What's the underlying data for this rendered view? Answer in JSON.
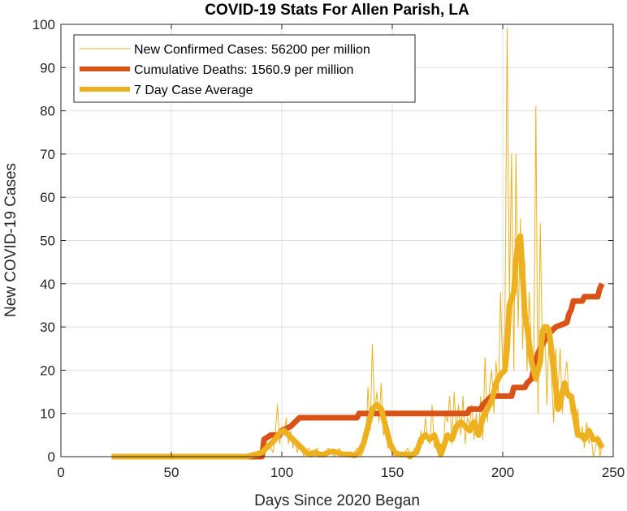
{
  "chart_data": {
    "type": "line",
    "title": "COVID-19 Stats For Allen Parish, LA",
    "xlabel": "Days Since 2020 Began",
    "ylabel": "New COVID-19 Cases",
    "xlim": [
      0,
      250
    ],
    "ylim": [
      0,
      100
    ],
    "xticks": [
      0,
      50,
      100,
      150,
      200,
      250
    ],
    "yticks": [
      0,
      10,
      20,
      30,
      40,
      50,
      60,
      70,
      80,
      90,
      100
    ],
    "grid": true,
    "legend_position": "top-left",
    "series": [
      {
        "name": "New Confirmed Cases: 56200 per million",
        "color": "#EDB120",
        "style": "thin",
        "points": [
          [
            23,
            0
          ],
          [
            85,
            0
          ],
          [
            89,
            1
          ],
          [
            92,
            0
          ],
          [
            94,
            3
          ],
          [
            96,
            1
          ],
          [
            97,
            5
          ],
          [
            98,
            12
          ],
          [
            99,
            3
          ],
          [
            100,
            7
          ],
          [
            101,
            5
          ],
          [
            102,
            9
          ],
          [
            103,
            3
          ],
          [
            104,
            6
          ],
          [
            105,
            2
          ],
          [
            106,
            4
          ],
          [
            107,
            1
          ],
          [
            108,
            3
          ],
          [
            110,
            0
          ],
          [
            112,
            2
          ],
          [
            114,
            1
          ],
          [
            116,
            2
          ],
          [
            117,
            0
          ],
          [
            118,
            1
          ],
          [
            120,
            0
          ],
          [
            121,
            2
          ],
          [
            122,
            1
          ],
          [
            124,
            0
          ],
          [
            126,
            2
          ],
          [
            128,
            0
          ],
          [
            130,
            1
          ],
          [
            132,
            0
          ],
          [
            134,
            2
          ],
          [
            136,
            0
          ],
          [
            138,
            3
          ],
          [
            139,
            16
          ],
          [
            140,
            6
          ],
          [
            141,
            26
          ],
          [
            142,
            10
          ],
          [
            143,
            15
          ],
          [
            144,
            8
          ],
          [
            145,
            17
          ],
          [
            146,
            5
          ],
          [
            147,
            7
          ],
          [
            148,
            2
          ],
          [
            149,
            3
          ],
          [
            151,
            0
          ],
          [
            153,
            1
          ],
          [
            155,
            0
          ],
          [
            157,
            2
          ],
          [
            159,
            0
          ],
          [
            160,
            2
          ],
          [
            162,
            1
          ],
          [
            163,
            6
          ],
          [
            164,
            3
          ],
          [
            165,
            9
          ],
          [
            166,
            4
          ],
          [
            167,
            3
          ],
          [
            168,
            12
          ],
          [
            169,
            2
          ],
          [
            170,
            5
          ],
          [
            171,
            0
          ],
          [
            172,
            3
          ],
          [
            173,
            1
          ],
          [
            174,
            10
          ],
          [
            175,
            8
          ],
          [
            176,
            14
          ],
          [
            177,
            3
          ],
          [
            178,
            15
          ],
          [
            179,
            6
          ],
          [
            180,
            12
          ],
          [
            181,
            5
          ],
          [
            182,
            14
          ],
          [
            183,
            3
          ],
          [
            184,
            9
          ],
          [
            185,
            7
          ],
          [
            186,
            12
          ],
          [
            187,
            4
          ],
          [
            188,
            10
          ],
          [
            189,
            5
          ],
          [
            190,
            14
          ],
          [
            191,
            4
          ],
          [
            192,
            23
          ],
          [
            193,
            8
          ],
          [
            194,
            16
          ],
          [
            195,
            20
          ],
          [
            196,
            10
          ],
          [
            197,
            22
          ],
          [
            198,
            14
          ],
          [
            199,
            38
          ],
          [
            200,
            20
          ],
          [
            201,
            30
          ],
          [
            202,
            99
          ],
          [
            203,
            36
          ],
          [
            204,
            70
          ],
          [
            205,
            20
          ],
          [
            206,
            70
          ],
          [
            207,
            30
          ],
          [
            208,
            55
          ],
          [
            209,
            25
          ],
          [
            210,
            45
          ],
          [
            211,
            20
          ],
          [
            212,
            38
          ],
          [
            213,
            25
          ],
          [
            214,
            18
          ],
          [
            215,
            81
          ],
          [
            216,
            10
          ],
          [
            217,
            54
          ],
          [
            218,
            22
          ],
          [
            219,
            30
          ],
          [
            220,
            12
          ],
          [
            221,
            30
          ],
          [
            222,
            20
          ],
          [
            223,
            8
          ],
          [
            224,
            25
          ],
          [
            225,
            15
          ],
          [
            226,
            25
          ],
          [
            227,
            10
          ],
          [
            228,
            18
          ],
          [
            229,
            22
          ],
          [
            230,
            14
          ],
          [
            231,
            10
          ],
          [
            232,
            13
          ],
          [
            233,
            5
          ],
          [
            234,
            11
          ],
          [
            235,
            4
          ],
          [
            236,
            7
          ],
          [
            237,
            2
          ],
          [
            238,
            8
          ],
          [
            239,
            3
          ],
          [
            240,
            5
          ],
          [
            241,
            0
          ],
          [
            242,
            2
          ],
          [
            243,
            5
          ],
          [
            244,
            0
          ],
          [
            245,
            3
          ]
        ]
      },
      {
        "name": "Cumulative Deaths: 1560.9 per million",
        "color": "#D95319",
        "style": "thick",
        "points": [
          [
            23,
            0
          ],
          [
            91,
            0
          ],
          [
            92,
            4
          ],
          [
            95,
            5
          ],
          [
            99,
            5
          ],
          [
            100,
            6
          ],
          [
            104,
            7
          ],
          [
            106,
            8
          ],
          [
            108,
            9
          ],
          [
            134,
            9
          ],
          [
            135,
            10
          ],
          [
            184,
            10
          ],
          [
            185,
            11
          ],
          [
            190,
            11
          ],
          [
            191,
            12
          ],
          [
            193,
            13
          ],
          [
            195,
            14
          ],
          [
            204,
            14
          ],
          [
            205,
            16
          ],
          [
            210,
            16
          ],
          [
            211,
            17
          ],
          [
            213,
            18
          ],
          [
            214,
            20
          ],
          [
            216,
            24
          ],
          [
            218,
            26
          ],
          [
            220,
            28
          ],
          [
            222,
            29
          ],
          [
            224,
            30
          ],
          [
            229,
            31
          ],
          [
            230,
            33
          ],
          [
            231,
            34
          ],
          [
            232,
            36
          ],
          [
            236,
            36
          ],
          [
            237,
            37
          ],
          [
            243,
            37
          ],
          [
            244,
            39
          ],
          [
            245,
            40
          ]
        ]
      },
      {
        "name": "7 Day Case Average",
        "color": "#EDB120",
        "style": "thick",
        "points": [
          [
            23,
            0
          ],
          [
            84,
            0
          ],
          [
            88,
            0.5
          ],
          [
            91,
            1
          ],
          [
            93,
            2
          ],
          [
            95,
            3
          ],
          [
            97,
            4
          ],
          [
            99,
            5.5
          ],
          [
            101,
            6
          ],
          [
            103,
            5
          ],
          [
            105,
            4
          ],
          [
            107,
            3
          ],
          [
            109,
            2
          ],
          [
            111,
            1
          ],
          [
            113,
            0.5
          ],
          [
            115,
            1
          ],
          [
            117,
            0.5
          ],
          [
            119,
            0.5
          ],
          [
            121,
            1
          ],
          [
            123,
            1.2
          ],
          [
            125,
            1
          ],
          [
            127,
            0.6
          ],
          [
            129,
            0.5
          ],
          [
            131,
            0.5
          ],
          [
            133,
            0.3
          ],
          [
            135,
            1
          ],
          [
            137,
            3
          ],
          [
            139,
            7
          ],
          [
            141,
            11
          ],
          [
            143,
            12
          ],
          [
            145,
            11
          ],
          [
            147,
            7
          ],
          [
            149,
            3
          ],
          [
            151,
            1
          ],
          [
            153,
            0.5
          ],
          [
            155,
            0.5
          ],
          [
            157,
            0.5
          ],
          [
            158,
            0
          ],
          [
            159,
            0.5
          ],
          [
            161,
            1
          ],
          [
            163,
            4
          ],
          [
            165,
            5
          ],
          [
            167,
            4
          ],
          [
            169,
            5
          ],
          [
            171,
            2
          ],
          [
            172,
            0.5
          ],
          [
            173,
            2
          ],
          [
            175,
            5
          ],
          [
            177,
            4
          ],
          [
            179,
            7
          ],
          [
            181,
            8
          ],
          [
            183,
            7
          ],
          [
            185,
            6
          ],
          [
            187,
            8
          ],
          [
            189,
            5
          ],
          [
            191,
            9
          ],
          [
            193,
            11
          ],
          [
            195,
            13
          ],
          [
            197,
            17
          ],
          [
            199,
            19
          ],
          [
            201,
            20
          ],
          [
            202,
            25
          ],
          [
            203,
            35
          ],
          [
            205,
            38
          ],
          [
            206,
            45
          ],
          [
            207,
            50
          ],
          [
            208,
            51
          ],
          [
            209,
            42
          ],
          [
            210,
            33
          ],
          [
            211,
            30
          ],
          [
            213,
            22
          ],
          [
            215,
            18
          ],
          [
            217,
            22
          ],
          [
            218,
            29
          ],
          [
            219,
            30
          ],
          [
            220,
            30
          ],
          [
            221,
            29
          ],
          [
            222,
            25
          ],
          [
            223,
            20
          ],
          [
            224,
            16
          ],
          [
            225,
            11
          ],
          [
            226,
            12
          ],
          [
            227,
            15
          ],
          [
            228,
            17
          ],
          [
            229,
            15
          ],
          [
            230,
            14
          ],
          [
            231,
            14
          ],
          [
            232,
            11
          ],
          [
            233,
            8
          ],
          [
            234,
            5
          ],
          [
            235,
            5
          ],
          [
            236,
            5
          ],
          [
            237,
            4
          ],
          [
            238,
            5
          ],
          [
            239,
            6
          ],
          [
            240,
            5
          ],
          [
            241,
            4
          ],
          [
            242,
            4
          ],
          [
            243,
            4
          ],
          [
            244,
            3
          ],
          [
            245,
            2
          ]
        ]
      }
    ]
  }
}
